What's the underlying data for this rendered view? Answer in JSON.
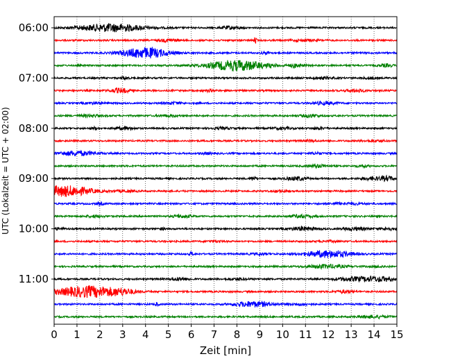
{
  "chart_data": {
    "type": "line",
    "title": "",
    "xlabel": "Zeit  [min]",
    "ylabel": "UTC (Lokalzeit = UTC + 02:00)",
    "xlim": [
      0,
      15
    ],
    "x_ticks": [
      "0",
      "1",
      "2",
      "3",
      "4",
      "5",
      "6",
      "7",
      "8",
      "9",
      "10",
      "11",
      "12",
      "13",
      "14",
      "15"
    ],
    "y_ticks": [
      "06:00",
      "07:00",
      "08:00",
      "09:00",
      "10:00",
      "11:00"
    ],
    "trace_interval_min": 15,
    "start_time": "06:00",
    "trace_colors": [
      "#000000",
      "#ff0000",
      "#0000ff",
      "#008000"
    ],
    "grid": "vertical dotted",
    "traces": [
      {
        "time": "06:00",
        "color": "#000000",
        "events": [
          [
            2.5,
            0.9,
            1.0
          ],
          [
            7.6,
            0.3,
            0.2
          ],
          [
            8.0,
            0.2,
            0.2
          ]
        ]
      },
      {
        "time": "06:15",
        "color": "#ff0000",
        "events": [
          [
            5.0,
            0.3,
            0.3
          ],
          [
            8.8,
            0.6,
            0.05
          ],
          [
            11.0,
            0.2,
            0.4
          ]
        ]
      },
      {
        "time": "06:30",
        "color": "#0000ff",
        "events": [
          [
            4.0,
            1.2,
            0.7
          ],
          [
            9.3,
            0.2,
            0.2
          ]
        ]
      },
      {
        "time": "06:45",
        "color": "#008000",
        "events": [
          [
            8.0,
            1.2,
            0.9
          ],
          [
            10.6,
            0.4,
            0.2
          ],
          [
            14.5,
            0.3,
            0.2
          ]
        ]
      },
      {
        "time": "07:00",
        "color": "#000000",
        "events": [
          [
            3.1,
            0.4,
            0.1
          ],
          [
            11.7,
            0.2,
            0.4
          ],
          [
            13.8,
            0.2,
            0.2
          ]
        ]
      },
      {
        "time": "07:15",
        "color": "#ff0000",
        "events": [
          [
            2.9,
            0.5,
            0.3
          ],
          [
            6.8,
            0.2,
            0.2
          ],
          [
            13.2,
            0.3,
            0.3
          ]
        ]
      },
      {
        "time": "07:30",
        "color": "#0000ff",
        "events": [
          [
            1.8,
            0.2,
            0.3
          ],
          [
            5.2,
            0.2,
            0.3
          ],
          [
            11.8,
            0.3,
            0.4
          ]
        ]
      },
      {
        "time": "07:45",
        "color": "#008000",
        "events": [
          [
            1.6,
            0.3,
            0.3
          ],
          [
            5.0,
            0.2,
            0.3
          ],
          [
            11.2,
            0.3,
            0.3
          ]
        ]
      },
      {
        "time": "08:00",
        "color": "#000000",
        "events": [
          [
            1.8,
            0.3,
            0.1
          ],
          [
            3.1,
            0.3,
            0.3
          ],
          [
            7.3,
            0.2,
            0.3
          ],
          [
            10.0,
            0.2,
            0.3
          ],
          [
            11.6,
            0.2,
            0.2
          ]
        ]
      },
      {
        "time": "08:15",
        "color": "#ff0000",
        "events": [
          [
            11.2,
            0.2,
            0.2
          ],
          [
            14.0,
            0.2,
            0.3
          ]
        ]
      },
      {
        "time": "08:30",
        "color": "#0000ff",
        "events": [
          [
            1.0,
            0.5,
            0.6
          ],
          [
            6.7,
            0.2,
            0.2
          ],
          [
            11.5,
            0.2,
            0.2
          ]
        ]
      },
      {
        "time": "08:45",
        "color": "#008000",
        "events": [
          [
            11.6,
            0.3,
            0.3
          ],
          [
            13.5,
            0.2,
            0.2
          ]
        ]
      },
      {
        "time": "09:00",
        "color": "#000000",
        "events": [
          [
            8.7,
            0.4,
            0.1
          ],
          [
            10.6,
            0.4,
            0.3
          ],
          [
            14.0,
            0.3,
            0.4
          ],
          [
            14.6,
            0.4,
            0.2
          ]
        ]
      },
      {
        "time": "09:15",
        "color": "#ff0000",
        "events": [
          [
            0.5,
            1.2,
            0.8
          ],
          [
            3.2,
            0.2,
            0.3
          ],
          [
            9.9,
            0.2,
            0.2
          ]
        ]
      },
      {
        "time": "09:30",
        "color": "#0000ff",
        "events": [
          [
            2.0,
            0.3,
            0.1
          ],
          [
            12.8,
            0.2,
            0.6
          ]
        ]
      },
      {
        "time": "09:45",
        "color": "#008000",
        "events": [
          [
            1.8,
            0.2,
            0.3
          ],
          [
            5.6,
            0.3,
            0.3
          ],
          [
            10.8,
            0.3,
            0.4
          ]
        ]
      },
      {
        "time": "10:00",
        "color": "#000000",
        "events": [
          [
            0.2,
            0.2,
            0.2
          ],
          [
            4.7,
            0.2,
            0.1
          ],
          [
            10.9,
            0.4,
            0.4
          ],
          [
            13.2,
            0.3,
            0.4
          ],
          [
            14.6,
            0.3,
            0.2
          ]
        ]
      },
      {
        "time": "10:15",
        "color": "#ff0000",
        "events": [
          [
            7.0,
            0.15,
            0.3
          ],
          [
            12.0,
            0.15,
            0.3
          ]
        ]
      },
      {
        "time": "10:30",
        "color": "#0000ff",
        "events": [
          [
            6.0,
            0.5,
            0.05
          ],
          [
            12.0,
            0.8,
            0.7
          ],
          [
            9.0,
            0.2,
            0.3
          ]
        ]
      },
      {
        "time": "10:45",
        "color": "#008000",
        "events": [
          [
            11.9,
            0.4,
            0.6
          ],
          [
            14.2,
            0.2,
            0.2
          ]
        ]
      },
      {
        "time": "11:00",
        "color": "#000000",
        "events": [
          [
            5.5,
            0.3,
            0.3
          ],
          [
            8.0,
            0.2,
            0.3
          ],
          [
            13.0,
            0.4,
            0.5
          ],
          [
            14.0,
            0.5,
            0.4
          ],
          [
            14.6,
            0.3,
            0.2
          ]
        ]
      },
      {
        "time": "11:15",
        "color": "#ff0000",
        "events": [
          [
            1.5,
            1.3,
            1.0
          ],
          [
            3.0,
            0.4,
            0.4
          ],
          [
            12.7,
            0.3,
            0.3
          ]
        ]
      },
      {
        "time": "11:30",
        "color": "#0000ff",
        "events": [
          [
            4.5,
            0.4,
            0.05
          ],
          [
            8.7,
            0.6,
            0.6
          ],
          [
            10.8,
            0.2,
            0.3
          ]
        ]
      },
      {
        "time": "11:45",
        "color": "#008000",
        "events": [
          [
            14.0,
            0.3,
            0.5
          ]
        ]
      }
    ]
  }
}
